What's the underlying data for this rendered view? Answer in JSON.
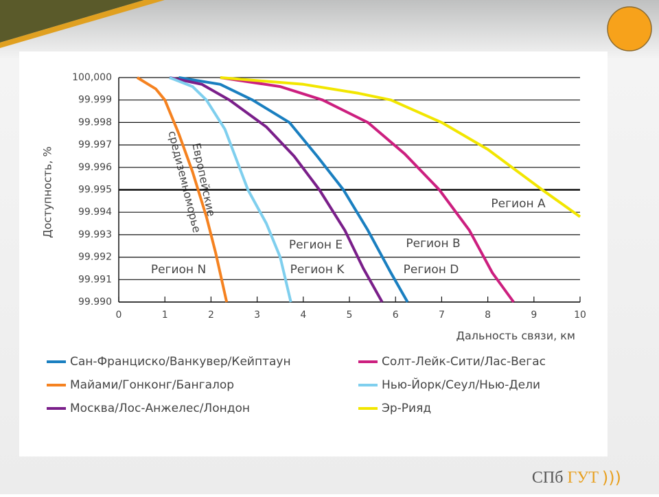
{
  "chart_data": {
    "type": "line",
    "y_label": "Доступность, %",
    "x_label": "Дальность связи, км",
    "xlim": [
      0,
      10
    ],
    "xticks": [
      0,
      1,
      2,
      3,
      4,
      5,
      6,
      7,
      8,
      9,
      10
    ],
    "ylim": [
      99.99,
      100
    ],
    "yticks": [
      {
        "value": 100,
        "label": "100,000"
      },
      99.999,
      99.998,
      99.997,
      99.996,
      99.995,
      99.994,
      99.993,
      99.992,
      99.991,
      {
        "value": 99.99,
        "label": "99.990"
      }
    ],
    "grid": true,
    "series": [
      {
        "name": "Сан-Франциско/Ванкувер/Кейптаун",
        "color": "#1a7fc0",
        "x": [
          1.3,
          2.2,
          2.9,
          3.7,
          4.3,
          4.87,
          5.4,
          5.9,
          6.26
        ],
        "values": [
          100,
          99.9997,
          99.999,
          99.998,
          99.9965,
          99.995,
          99.9932,
          99.9913,
          99.99
        ]
      },
      {
        "name": "Майами/Гонконг/Бангалор",
        "color": "#f58220",
        "x": [
          0.4,
          0.8,
          1.0,
          1.3,
          1.6,
          1.9,
          2.1,
          2.34
        ],
        "values": [
          100,
          99.9995,
          99.999,
          99.9975,
          99.9958,
          99.9938,
          99.9922,
          99.99
        ]
      },
      {
        "name": "Москва/Лос-Анжелес/Лондон",
        "color": "#7a1f8a",
        "x": [
          1.1,
          1.8,
          2.4,
          3.2,
          3.8,
          4.35,
          4.9,
          5.3,
          5.71
        ],
        "values": [
          100,
          99.9997,
          99.999,
          99.9978,
          99.9965,
          99.995,
          99.9932,
          99.9915,
          99.99
        ]
      },
      {
        "name": "Солт-Лейк-Сити/Лас-Вегас",
        "color": "#cc1f7f",
        "x": [
          2.2,
          3.5,
          4.42,
          5.4,
          6.2,
          6.95,
          7.6,
          8.1,
          8.56
        ],
        "values": [
          100,
          99.9996,
          99.999,
          99.998,
          99.9966,
          99.995,
          99.9932,
          99.9913,
          99.99
        ]
      },
      {
        "name": "Нью-Йорк/Сеул/Нью-Дели",
        "color": "#7fcfee",
        "x": [
          1.1,
          1.6,
          1.9,
          2.3,
          2.8,
          3.2,
          3.5,
          3.73
        ],
        "values": [
          100,
          99.9996,
          99.999,
          99.9977,
          99.995,
          99.9935,
          99.992,
          99.99
        ]
      },
      {
        "name": "Эр-Рияд",
        "color": "#f2e600",
        "x": [
          2.2,
          4.0,
          5.2,
          5.9,
          7.0,
          8.0,
          9.18,
          10
        ],
        "values": [
          100,
          99.9997,
          99.9993,
          99.999,
          99.998,
          99.9968,
          99.995,
          99.9938
        ]
      }
    ],
    "annotations": [
      "Европейские",
      "средиземноморье",
      "Регион N",
      "Регион E",
      "Регион K",
      "Регион B",
      "Регион D",
      "Регион A"
    ]
  },
  "logo": {
    "left": "СПб",
    "right": "ГУТ"
  }
}
